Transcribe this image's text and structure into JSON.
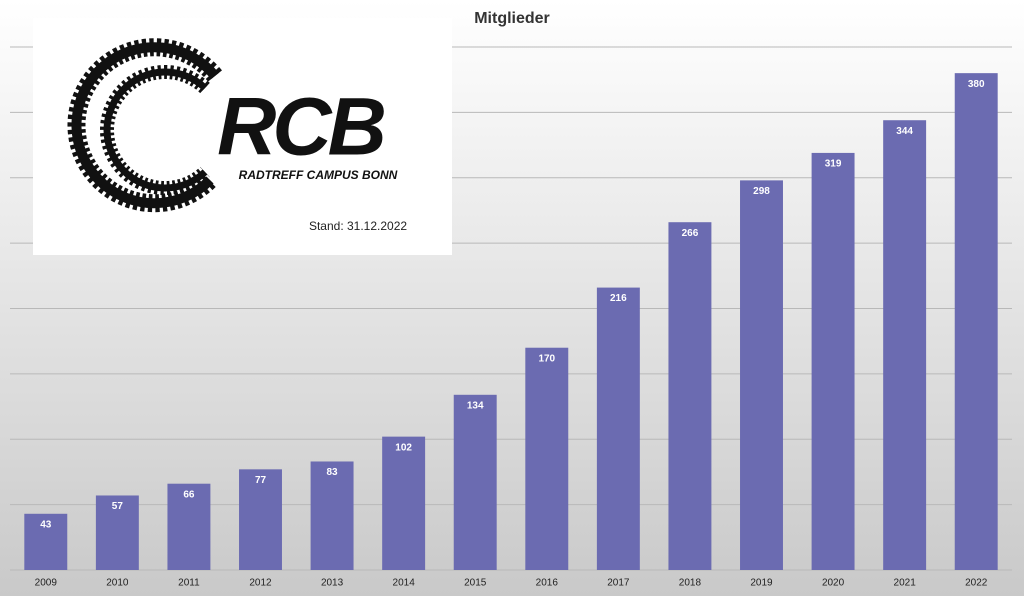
{
  "chart_data": {
    "type": "bar",
    "title": "Mitglieder",
    "categories": [
      "2009",
      "2010",
      "2011",
      "2012",
      "2013",
      "2014",
      "2015",
      "2016",
      "2017",
      "2018",
      "2019",
      "2020",
      "2021",
      "2022"
    ],
    "values": [
      43,
      57,
      66,
      77,
      83,
      102,
      134,
      170,
      216,
      266,
      298,
      319,
      344,
      380
    ],
    "color": "#6b6bb1",
    "ylim": [
      0,
      400
    ],
    "yticks": [
      0,
      50,
      100,
      150,
      200,
      250,
      300,
      350,
      400
    ],
    "grid": true
  },
  "logo": {
    "title": "RCB",
    "subtitle": "RADTREFF CAMPUS BONN",
    "note": "Stand: 31.12.2022"
  }
}
